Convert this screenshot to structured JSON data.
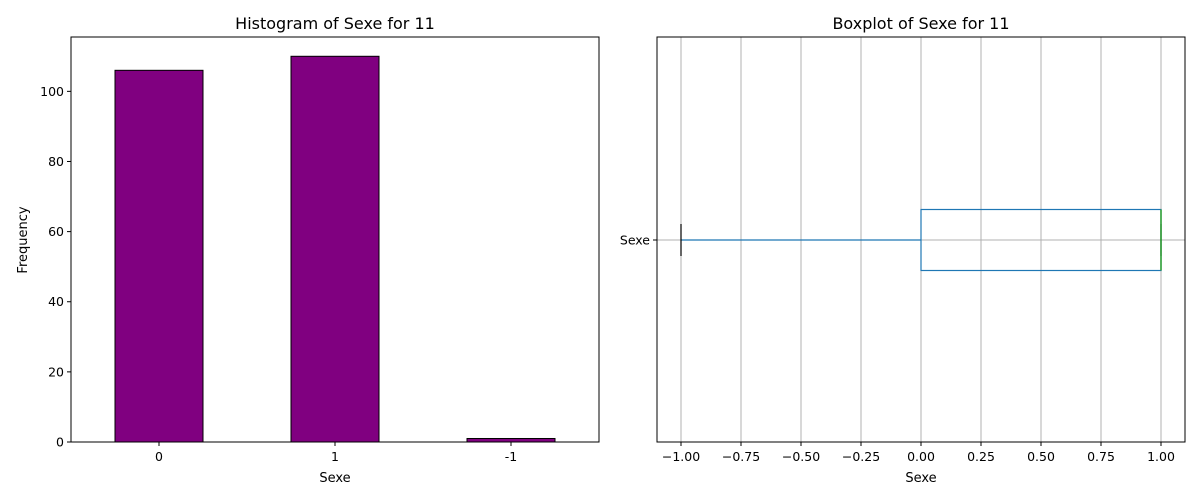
{
  "chart_data": [
    {
      "type": "bar",
      "title": "Histogram of Sexe for 11",
      "xlabel": "Sexe",
      "ylabel": "Frequency",
      "categories": [
        "0",
        "1",
        "-1"
      ],
      "values": [
        106,
        110,
        1
      ],
      "ylim": [
        0,
        115.5
      ],
      "yticks": [
        0,
        20,
        40,
        60,
        80,
        100
      ],
      "grid": false,
      "colors": {
        "bar": "#800080",
        "edge": "#000000"
      }
    },
    {
      "type": "boxplot",
      "title": "Boxplot of Sexe for 11",
      "xlabel": "Sexe",
      "ylabel": "",
      "category": "Sexe",
      "stats": {
        "whisker_low": -1,
        "q1": 0,
        "median": 1,
        "q3": 1,
        "whisker_high": 1
      },
      "xlim": [
        -1.1,
        1.1
      ],
      "xticks": [
        -1.0,
        -0.75,
        -0.5,
        -0.25,
        0.0,
        0.25,
        0.5,
        0.75,
        1.0
      ],
      "xtick_labels": [
        "−1.00",
        "−0.75",
        "−0.50",
        "−0.25",
        "0.00",
        "0.25",
        "0.50",
        "0.75",
        "1.00"
      ],
      "grid": true,
      "colors": {
        "box": "#1f77b4",
        "median": "#2ca02c",
        "grid": "#b0b0b0"
      }
    }
  ]
}
